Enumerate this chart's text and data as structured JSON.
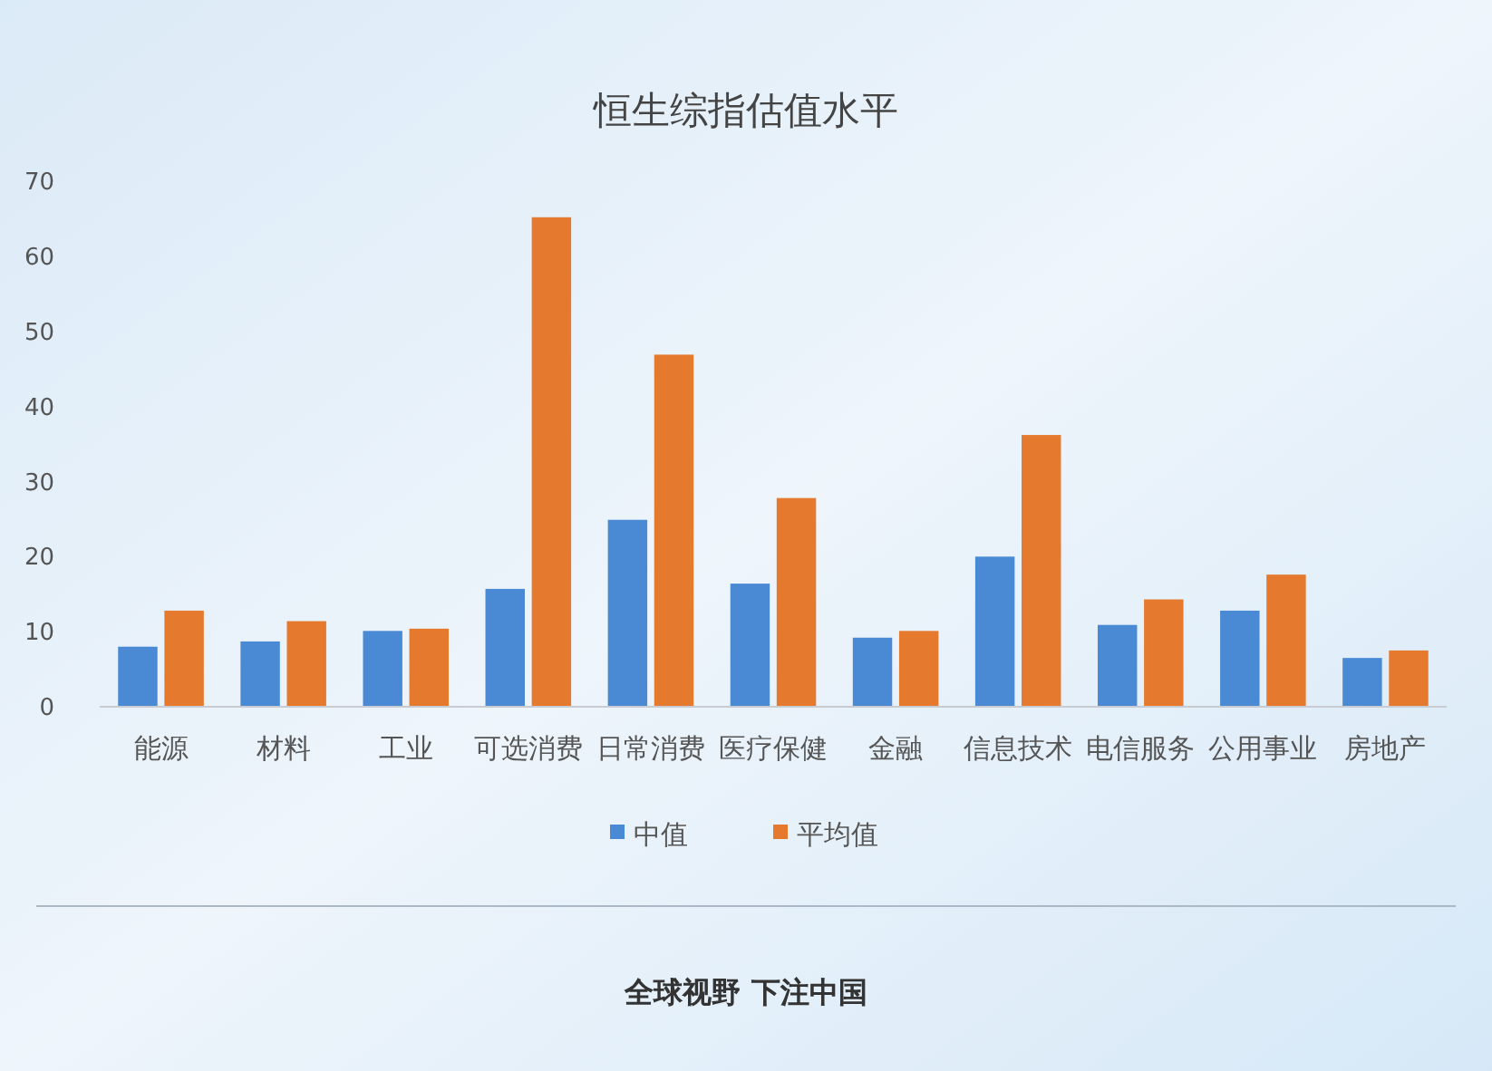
{
  "chart_data": {
    "type": "bar",
    "title": "恒生综指估值水平",
    "categories": [
      "能源",
      "材料",
      "工业",
      "可选消费",
      "日常消费",
      "医疗保健",
      "金融",
      "信息技术",
      "电信服务",
      "公用事业",
      "房地产"
    ],
    "series": [
      {
        "name": "中值",
        "color": "#4a8ad4",
        "values": [
          8.0,
          8.7,
          10.1,
          15.7,
          24.9,
          16.4,
          9.2,
          20.0,
          10.9,
          12.8,
          6.5
        ]
      },
      {
        "name": "平均值",
        "color": "#e57a2e",
        "values": [
          12.8,
          11.4,
          10.4,
          65.2,
          46.9,
          27.8,
          10.1,
          36.2,
          14.3,
          17.6,
          7.5
        ]
      }
    ],
    "ylim": [
      0,
      70
    ],
    "yticks": [
      0,
      10,
      20,
      30,
      40,
      50,
      60,
      70
    ],
    "grid": false,
    "legend": "bottom",
    "annotations": [
      "全球视野 下注中国"
    ]
  }
}
